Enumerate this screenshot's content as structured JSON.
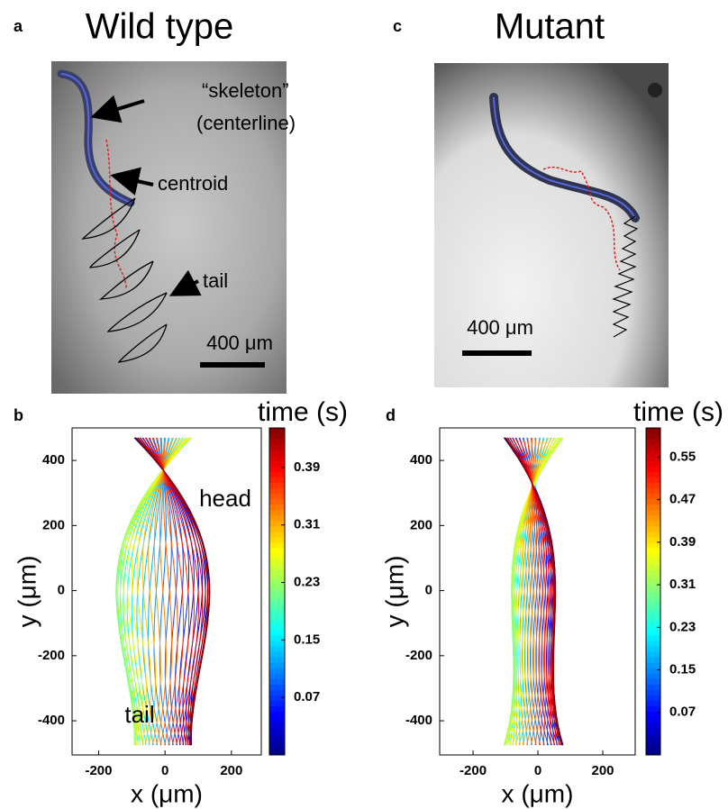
{
  "figure": {
    "a": {
      "panel": "a",
      "title": "Wild type",
      "skeleton_label": "“skeleton”",
      "centerline_label": "(centerline)",
      "centroid_label": "centroid",
      "tail_label": "tail",
      "scale_bar": "400 μm"
    },
    "c": {
      "panel": "c",
      "title": "Mutant",
      "scale_bar": "400 μm"
    }
  },
  "chart_data": [
    {
      "type": "line",
      "panel": "b",
      "xlabel": "x (μm)",
      "ylabel": "y (μm)",
      "xlim": [
        -280,
        290
      ],
      "ylim": [
        -505,
        500
      ],
      "xticks": [
        -200,
        0,
        200
      ],
      "yticks": [
        -400,
        -200,
        0,
        200,
        400
      ],
      "annotations": [
        "head",
        "tail"
      ],
      "colorbar": {
        "label": "time (s)",
        "lim": [
          -0.01,
          0.445
        ],
        "ticks": [
          0.07,
          0.15,
          0.23,
          0.31,
          0.39
        ]
      }
    },
    {
      "type": "line",
      "panel": "d",
      "xlabel": "x (μm)",
      "ylabel": "y (μm)",
      "xlim": [
        -303,
        300
      ],
      "ylim": [
        -505,
        500
      ],
      "xticks": [
        -200,
        0,
        200
      ],
      "yticks": [
        -400,
        -200,
        0,
        200,
        400
      ],
      "colorbar": {
        "label": "time (s)",
        "lim": [
          -0.01,
          0.605
        ],
        "ticks": [
          0.07,
          0.15,
          0.23,
          0.31,
          0.39,
          0.47,
          0.55
        ]
      }
    }
  ]
}
